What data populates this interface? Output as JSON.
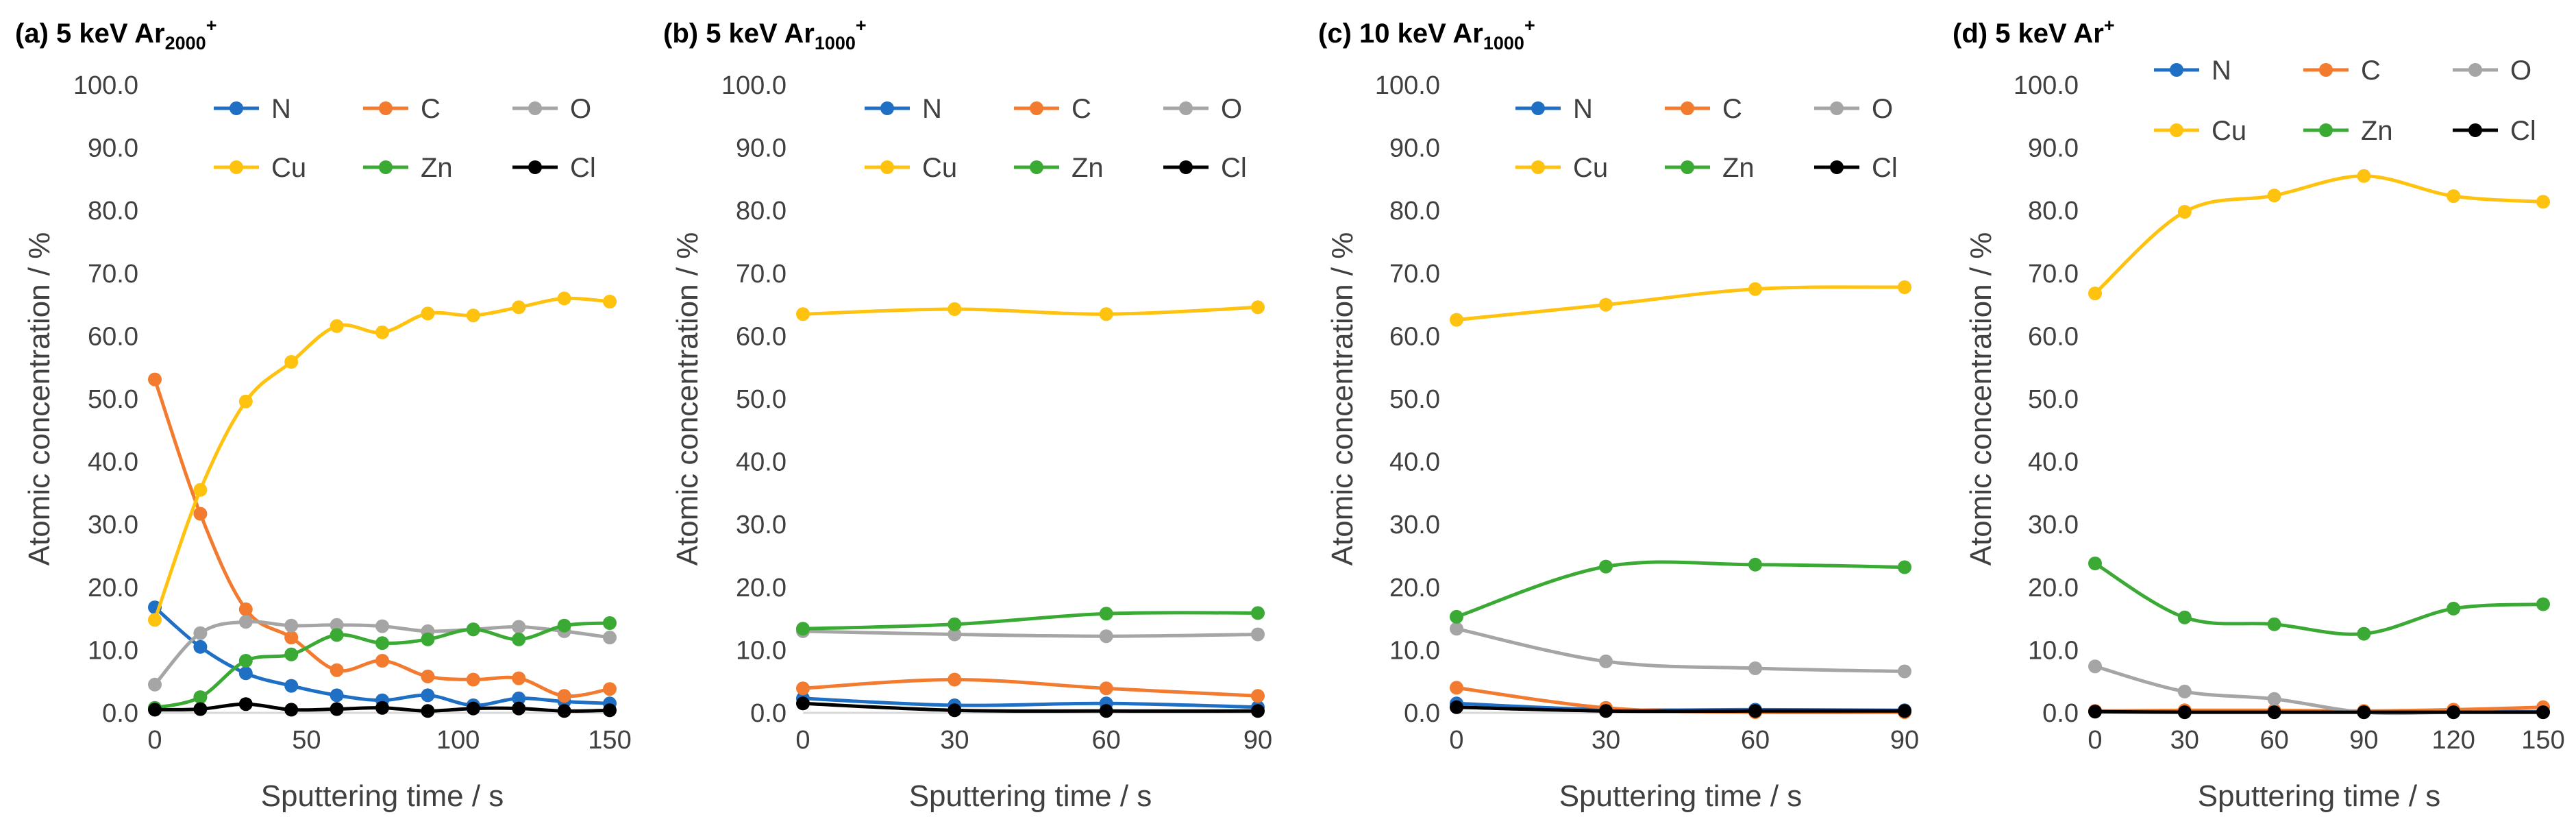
{
  "chart_data": [
    {
      "type": "line",
      "title": {
        "prefix": "(a) 5 keV Ar",
        "sub": "2000",
        "sup": "+"
      },
      "xlabel": "Sputtering time / s",
      "ylabel": "Atomic concentration / %",
      "xlim": [
        0,
        150
      ],
      "xticks": [
        "0",
        "50",
        "100",
        "150"
      ],
      "ylim": [
        0,
        100
      ],
      "yticks": [
        "0.0",
        "10.0",
        "20.0",
        "30.0",
        "40.0",
        "50.0",
        "60.0",
        "70.0",
        "80.0",
        "90.0",
        "100.0"
      ],
      "x": [
        0,
        15,
        30,
        45,
        60,
        75,
        90,
        105,
        120,
        135,
        150
      ],
      "series": [
        {
          "name": "N",
          "color": "#1f6fc5",
          "values": [
            16.8,
            10.5,
            6.3,
            4.3,
            2.8,
            2.0,
            2.8,
            1.2,
            2.3,
            1.8,
            1.5
          ]
        },
        {
          "name": "C",
          "color": "#f27b2f",
          "values": [
            53.1,
            31.7,
            16.5,
            12.0,
            6.8,
            8.3,
            5.8,
            5.3,
            5.5,
            2.7,
            3.8
          ]
        },
        {
          "name": "O",
          "color": "#a5a5a5",
          "values": [
            4.5,
            12.7,
            14.5,
            13.9,
            14.0,
            13.8,
            13.0,
            13.3,
            13.7,
            13.0,
            12.0
          ]
        },
        {
          "name": "Cu",
          "color": "#ffc20e",
          "values": [
            14.8,
            35.5,
            49.6,
            55.9,
            61.6,
            60.6,
            63.6,
            63.3,
            64.6,
            66.0,
            65.5
          ]
        },
        {
          "name": "Zn",
          "color": "#3aaa35",
          "values": [
            0.8,
            2.5,
            8.3,
            9.3,
            12.4,
            11.1,
            11.7,
            13.3,
            11.7,
            13.9,
            14.3
          ]
        },
        {
          "name": "Cl",
          "color": "#000000",
          "values": [
            0.5,
            0.6,
            1.4,
            0.5,
            0.6,
            0.8,
            0.3,
            0.7,
            0.7,
            0.3,
            0.4
          ]
        }
      ]
    },
    {
      "type": "line",
      "title": {
        "prefix": "(b) 5 keV Ar",
        "sub": "1000",
        "sup": "+"
      },
      "xlabel": "Sputtering time / s",
      "ylabel": "Atomic concentration / %",
      "xlim": [
        0,
        90
      ],
      "xticks": [
        "0",
        "30",
        "60",
        "90"
      ],
      "ylim": [
        0,
        100
      ],
      "yticks": [
        "0.0",
        "10.0",
        "20.0",
        "30.0",
        "40.0",
        "50.0",
        "60.0",
        "70.0",
        "80.0",
        "90.0",
        "100.0"
      ],
      "x": [
        0,
        30,
        60,
        90
      ],
      "series": [
        {
          "name": "N",
          "color": "#1f6fc5",
          "values": [
            2.3,
            1.2,
            1.5,
            0.9
          ]
        },
        {
          "name": "C",
          "color": "#f27b2f",
          "values": [
            3.9,
            5.3,
            3.9,
            2.7
          ]
        },
        {
          "name": "O",
          "color": "#a5a5a5",
          "values": [
            13.0,
            12.5,
            12.2,
            12.5
          ]
        },
        {
          "name": "Cu",
          "color": "#ffc20e",
          "values": [
            63.5,
            64.3,
            63.5,
            64.6
          ]
        },
        {
          "name": "Zn",
          "color": "#3aaa35",
          "values": [
            13.4,
            14.1,
            15.8,
            15.9
          ]
        },
        {
          "name": "Cl",
          "color": "#000000",
          "values": [
            1.5,
            0.4,
            0.3,
            0.3
          ]
        }
      ]
    },
    {
      "type": "line",
      "title": {
        "prefix": "(c) 10 keV Ar",
        "sub": "1000",
        "sup": "+"
      },
      "xlabel": "Sputtering time / s",
      "ylabel": "Atomic concentration / %",
      "xlim": [
        0,
        90
      ],
      "xticks": [
        "0",
        "30",
        "60",
        "90"
      ],
      "ylim": [
        0,
        100
      ],
      "yticks": [
        "0.0",
        "10.0",
        "20.0",
        "30.0",
        "40.0",
        "50.0",
        "60.0",
        "70.0",
        "80.0",
        "90.0",
        "100.0"
      ],
      "x": [
        0,
        30,
        60,
        90
      ],
      "series": [
        {
          "name": "N",
          "color": "#1f6fc5",
          "values": [
            1.5,
            0.5,
            0.5,
            0.4
          ]
        },
        {
          "name": "C",
          "color": "#f27b2f",
          "values": [
            4.0,
            0.8,
            0.1,
            0.1
          ]
        },
        {
          "name": "O",
          "color": "#a5a5a5",
          "values": [
            13.4,
            8.2,
            7.1,
            6.6
          ]
        },
        {
          "name": "Cu",
          "color": "#ffc20e",
          "values": [
            62.6,
            65.0,
            67.5,
            67.8
          ]
        },
        {
          "name": "Zn",
          "color": "#3aaa35",
          "values": [
            15.3,
            23.3,
            23.6,
            23.2
          ]
        },
        {
          "name": "Cl",
          "color": "#000000",
          "values": [
            0.9,
            0.3,
            0.3,
            0.3
          ]
        }
      ]
    },
    {
      "type": "line",
      "title": {
        "prefix": "(d) 5 keV Ar",
        "sub": "",
        "sup": "+"
      },
      "xlabel": "Sputtering time / s",
      "ylabel": "Atomic concentration / %",
      "xlim": [
        0,
        150
      ],
      "xticks": [
        "0",
        "30",
        "60",
        "90",
        "120",
        "150"
      ],
      "ylim": [
        0,
        100
      ],
      "yticks": [
        "0.0",
        "10.0",
        "20.0",
        "30.0",
        "40.0",
        "50.0",
        "60.0",
        "70.0",
        "80.0",
        "90.0",
        "100.0"
      ],
      "x": [
        0,
        30,
        60,
        90,
        120,
        150
      ],
      "series": [
        {
          "name": "N",
          "color": "#1f6fc5",
          "values": [
            0.3,
            0.2,
            0.2,
            0.1,
            0.2,
            0.2
          ]
        },
        {
          "name": "C",
          "color": "#f27b2f",
          "values": [
            0.3,
            0.4,
            0.4,
            0.3,
            0.5,
            0.9
          ]
        },
        {
          "name": "O",
          "color": "#a5a5a5",
          "values": [
            7.4,
            3.4,
            2.2,
            0.1,
            0.1,
            0.1
          ]
        },
        {
          "name": "Cu",
          "color": "#ffc20e",
          "values": [
            66.8,
            79.8,
            82.4,
            85.5,
            82.3,
            81.4
          ]
        },
        {
          "name": "Zn",
          "color": "#3aaa35",
          "values": [
            23.8,
            15.2,
            14.1,
            12.6,
            16.6,
            17.3
          ]
        },
        {
          "name": "Cl",
          "color": "#000000",
          "values": [
            0.2,
            0.1,
            0.1,
            0.1,
            0.1,
            0.1
          ]
        }
      ]
    }
  ]
}
